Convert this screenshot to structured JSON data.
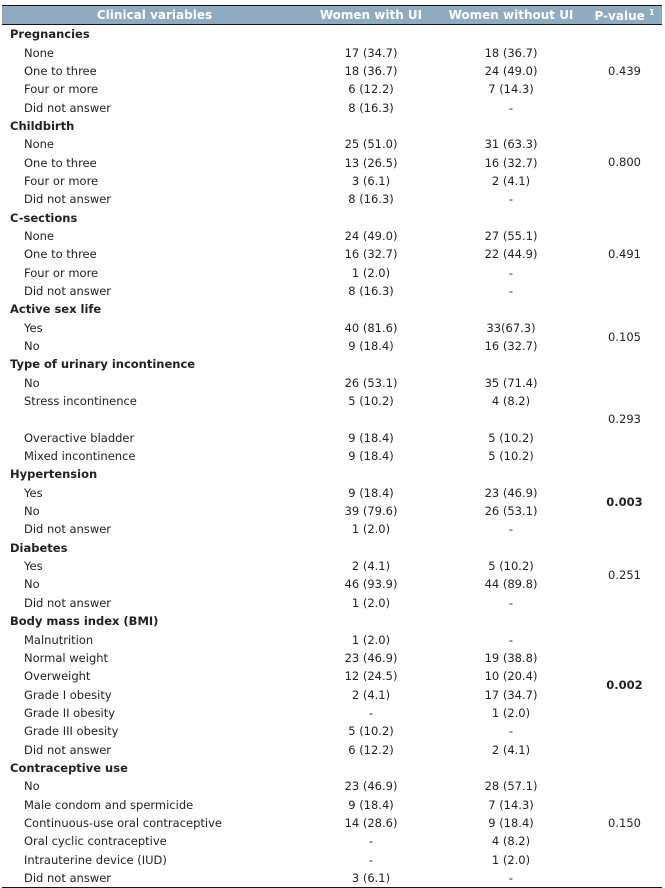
{
  "header": {
    "variables": "Clinical variables",
    "with_ui": "Women with UI",
    "without_ui": "Women without UI",
    "p_value": "P-value",
    "p_value_footnote": "1"
  },
  "groups": [
    {
      "title": "Pregnancies",
      "p_value": "0.439",
      "significant": false,
      "rows": [
        [
          "None",
          "17 (34.7)",
          "18 (36.7)"
        ],
        [
          "One to three",
          "18 (36.7)",
          "24 (49.0)"
        ],
        [
          "Four or more",
          "6 (12.2)",
          "7 (14.3)"
        ],
        [
          "Did not answer",
          "8 (16.3)",
          "-"
        ]
      ]
    },
    {
      "title": "Childbirth",
      "p_value": "0.800",
      "significant": false,
      "rows": [
        [
          "None",
          "25 (51.0)",
          "31 (63.3)"
        ],
        [
          "One to three",
          "13 (26.5)",
          "16 (32.7)"
        ],
        [
          "Four or more",
          "3 (6.1)",
          "2 (4.1)"
        ],
        [
          "Did not answer",
          "8 (16.3)",
          "-"
        ]
      ]
    },
    {
      "title": "C-sections",
      "p_value": "0.491",
      "significant": false,
      "rows": [
        [
          "None",
          "24 (49.0)",
          "27 (55.1)"
        ],
        [
          "One to three",
          "16 (32.7)",
          "22 (44.9)"
        ],
        [
          "Four or more",
          "1 (2.0)",
          "-"
        ],
        [
          "Did not answer",
          "8 (16.3)",
          "-"
        ]
      ]
    },
    {
      "title": "Active sex life",
      "p_value": "0.105",
      "significant": false,
      "rows": [
        [
          "Yes",
          "40 (81.6)",
          "33(67.3)"
        ],
        [
          "No",
          "9 (18.4)",
          "16 (32.7)"
        ]
      ]
    },
    {
      "title": "Type of urinary incontinence",
      "p_value": "0.293",
      "significant": false,
      "rows": [
        [
          "No",
          "26 (53.1)",
          "35 (71.4)"
        ],
        [
          "Stress incontinence",
          "5 (10.2)",
          "4 (8.2)"
        ],
        [
          "",
          "",
          ""
        ],
        [
          "Overactive bladder",
          "9 (18.4)",
          "5 (10.2)"
        ],
        [
          "Mixed incontinence",
          "9 (18.4)",
          "5 (10.2)"
        ]
      ]
    },
    {
      "title": "Hypertension",
      "p_value": "0.003",
      "significant": true,
      "rows": [
        [
          "Yes",
          "9 (18.4)",
          "23 (46.9)"
        ],
        [
          "No",
          "39 (79.6)",
          "26 (53.1)"
        ],
        [
          "Did not answer",
          "1 (2.0)",
          "-"
        ]
      ]
    },
    {
      "title": "Diabetes",
      "p_value": "0.251",
      "significant": false,
      "rows": [
        [
          "Yes",
          "2 (4.1)",
          "5 (10.2)"
        ],
        [
          "No",
          "46 (93.9)",
          "44 (89.8)"
        ],
        [
          "Did not answer",
          "1 (2.0)",
          "-"
        ]
      ]
    },
    {
      "title": "Body mass index (BMI)",
      "p_value": "0.002",
      "significant": true,
      "rows": [
        [
          "Malnutrition",
          "1 (2.0)",
          "-"
        ],
        [
          "Normal weight",
          "23 (46.9)",
          "19 (38.8)"
        ],
        [
          "Overweight",
          "12 (24.5)",
          "10 (20.4)"
        ],
        [
          "Grade I obesity",
          "2 (4.1)",
          "17 (34.7)"
        ],
        [
          "Grade II obesity",
          "-",
          "1 (2.0)"
        ],
        [
          "Grade III obesity",
          "5 (10.2)",
          "-"
        ],
        [
          "Did not answer",
          "6 (12.2)",
          "2 (4.1)"
        ]
      ]
    },
    {
      "title": "Contraceptive use",
      "p_value": "0.150",
      "significant": false,
      "rows": [
        [
          "No",
          "23 (46.9)",
          "28 (57.1)"
        ],
        [
          "Male condom and spermicide",
          "9 (18.4)",
          "7 (14.3)"
        ],
        [
          "Continuous-use oral contraceptive",
          "14 (28.6)",
          "9 (18.4)"
        ],
        [
          "Oral cyclic contraceptive",
          "-",
          "4 (8.2)"
        ],
        [
          "Intrauterine device (IUD)",
          "-",
          "1 (2.0)"
        ],
        [
          "Did not answer",
          "3 (6.1)",
          "-"
        ]
      ]
    }
  ]
}
